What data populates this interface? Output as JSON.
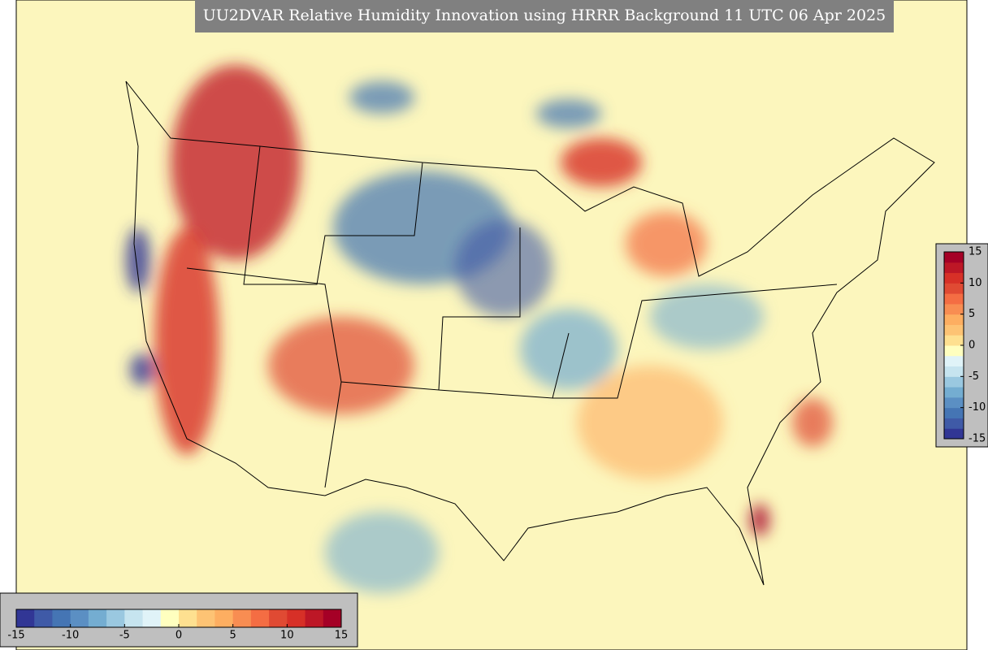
{
  "title": "UU2DVAR Relative Humidity Innovation using HRRR Background 11 UTC 06 Apr 2025",
  "colormap": [
    "#313695",
    "#3f5aa7",
    "#4575b4",
    "#5b8fc3",
    "#74add1",
    "#9ac8e0",
    "#c6e4ef",
    "#e0f3f8",
    "#ffffbf",
    "#fee090",
    "#fdc374",
    "#fdae61",
    "#f88d52",
    "#f46d43",
    "#e04a33",
    "#d73027",
    "#bd1726",
    "#a50026"
  ],
  "colorbars": [
    {
      "orientation": "horizontal",
      "lim": [
        -15,
        15
      ],
      "ticks": [
        -15,
        -10,
        -5,
        0,
        5,
        10,
        15
      ]
    },
    {
      "orientation": "vertical",
      "lim": [
        -15,
        15
      ],
      "ticks": [
        15,
        10,
        5,
        0,
        -5,
        -10,
        -15
      ]
    }
  ]
}
